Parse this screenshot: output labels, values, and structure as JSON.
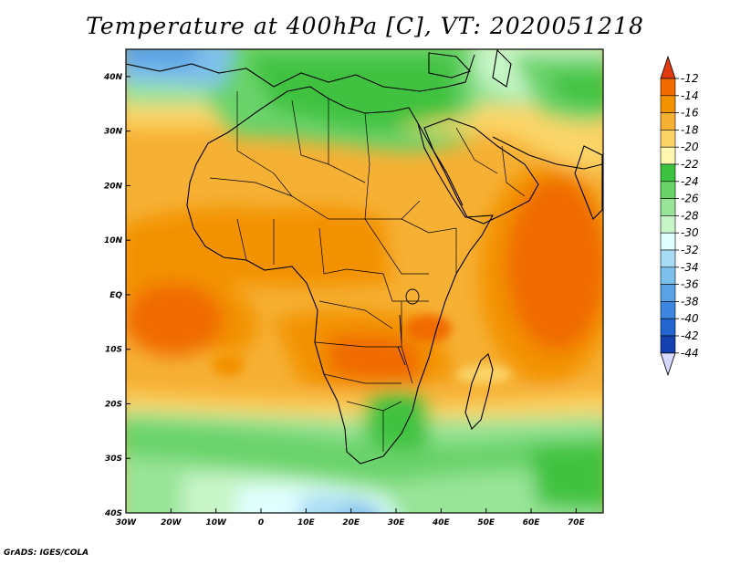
{
  "title": "Temperature at 400hPa [C], VT: 2020051218",
  "footer": "GrADS: IGES/COLA",
  "map": {
    "lon_range": [
      -30,
      76
    ],
    "lat_range": [
      -40,
      45
    ],
    "lon_ticks": [
      {
        "value": -30,
        "label": "30W"
      },
      {
        "value": -20,
        "label": "20W"
      },
      {
        "value": -10,
        "label": "10W"
      },
      {
        "value": 0,
        "label": "0"
      },
      {
        "value": 10,
        "label": "10E"
      },
      {
        "value": 20,
        "label": "20E"
      },
      {
        "value": 30,
        "label": "30E"
      },
      {
        "value": 40,
        "label": "40E"
      },
      {
        "value": 50,
        "label": "50E"
      },
      {
        "value": 60,
        "label": "60E"
      },
      {
        "value": 70,
        "label": "70E"
      }
    ],
    "lat_ticks": [
      {
        "value": 40,
        "label": "40N"
      },
      {
        "value": 30,
        "label": "30N"
      },
      {
        "value": 20,
        "label": "20N"
      },
      {
        "value": 10,
        "label": "10N"
      },
      {
        "value": 0,
        "label": "EQ"
      },
      {
        "value": -10,
        "label": "10S"
      },
      {
        "value": -20,
        "label": "20S"
      },
      {
        "value": -30,
        "label": "30S"
      },
      {
        "value": -40,
        "label": "40S"
      }
    ]
  },
  "colorbar": {
    "levels": [
      "-12",
      "-14",
      "-16",
      "-18",
      "-20",
      "-22",
      "-24",
      "-26",
      "-28",
      "-30",
      "-32",
      "-34",
      "-36",
      "-38",
      "-40",
      "-42",
      "-44"
    ],
    "colors": [
      "#f06a00",
      "#f39200",
      "#f6b034",
      "#fbd468",
      "#fff7b0",
      "#3fc23f",
      "#6ad36a",
      "#98e498",
      "#c8f5c8",
      "#e0ffff",
      "#a8dcf4",
      "#7ec0ec",
      "#5aa3e4",
      "#3f86e0",
      "#2466cf",
      "#1440b0",
      "#0a1f80"
    ],
    "top_color": "#e23b10",
    "bottom_color": "#d6d8ff"
  }
}
